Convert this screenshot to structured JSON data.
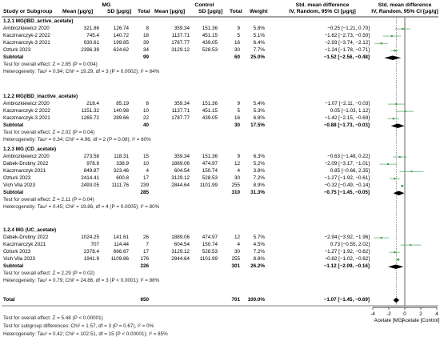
{
  "header": {
    "study_col": "Study or Subgroup",
    "group1": "MG",
    "group2": "Control",
    "mean1": "Mean [μg/g]",
    "sd1": "SD [μg/g]",
    "total1": "Total",
    "mean2": "Mean [μg/g]",
    "sd2": "SD [μg/g]",
    "total2": "Total",
    "weight": "Weight",
    "smd_title": "Std. mean difference",
    "smd_method": "IV, Random, 95% CI [μg/g]",
    "plot_title": "Std. mean difference",
    "plot_method": "IV, Random, 95% CI [μg/g]"
  },
  "subgroups": [
    {
      "title": "1.2.1 MG(IBD_active_acetate)",
      "studies": [
        {
          "name": "Ambrozkiewicz 2020",
          "m1": "321.86",
          "sd1": "126.74",
          "n1": "8",
          "m2": "359.34",
          "sd2": "151.36",
          "n2": "9",
          "w": "5.8%",
          "ci": "−0.25 [−1.21, 0.70]",
          "est": -0.25,
          "lo": -1.21,
          "hi": 0.7
        },
        {
          "name": "Kaczmarczyk-2 2022",
          "m1": "745.4",
          "sd1": "140.72",
          "n1": "18",
          "m2": "1137.71",
          "sd2": "451.15",
          "n2": "5",
          "w": "5.1%",
          "ci": "−1.62 [−2.73, −0.50]",
          "est": -1.62,
          "lo": -2.73,
          "hi": -0.5
        },
        {
          "name": "Kaczmarczyk-3 2021",
          "m1": "930.61",
          "sd1": "199.85",
          "n1": "39",
          "m2": "1787.77",
          "sd2": "439.05",
          "n2": "16",
          "w": "6.4%",
          "ci": "−2.93 [−3.74, −2.12]",
          "est": -2.93,
          "lo": -3.74,
          "hi": -2.12
        },
        {
          "name": "Ozturk 2023",
          "m1": "2396.39",
          "sd1": "624.62",
          "n1": "34",
          "m2": "3129.12",
          "sd2": "528.53",
          "n2": "30",
          "w": "7.7%",
          "ci": "−1.24 [−1.78, −0.71]",
          "est": -1.24,
          "lo": -1.78,
          "hi": -0.71
        }
      ],
      "subtotal": {
        "label": "Subtotal",
        "n1": "99",
        "n2": "60",
        "w": "25.0%",
        "ci": "−1.52 [−2.56, −0.48]",
        "est": -1.52,
        "lo": -2.56,
        "hi": -0.48
      },
      "effect": "Test for overall effect: Z = 2.85 (P = 0.004)",
      "het": "Heterogeneity: Tau² = 0.94; Chi² = 19.29, df = 3 (P = 0.0002); I² = 84%"
    },
    {
      "title": "1.2.2 MG(IBD_inactive_acetate)",
      "studies": [
        {
          "name": "Ambrozkiewicz 2020",
          "m1": "218.4",
          "sd1": "85.19",
          "n1": "8",
          "m2": "359.34",
          "sd2": "151.36",
          "n2": "9",
          "w": "5.4%",
          "ci": "−1.07 [−2.11, −0.03]",
          "est": -1.07,
          "lo": -2.11,
          "hi": -0.03
        },
        {
          "name": "Kaczmarczyk-2 2022",
          "m1": "1151.32",
          "sd1": "140.98",
          "n1": "10",
          "m2": "1137.71",
          "sd2": "451.15",
          "n2": "5",
          "w": "5.3%",
          "ci": "0.05 [−1.03, 1.12]",
          "est": 0.05,
          "lo": -1.03,
          "hi": 1.12
        },
        {
          "name": "Kaczmarczyk-3 2021",
          "m1": "1265.72",
          "sd1": "289.66",
          "n1": "22",
          "m2": "1787.77",
          "sd2": "439.05",
          "n2": "16",
          "w": "6.8%",
          "ci": "−1.42 [−2.15, −0.69]",
          "est": -1.42,
          "lo": -2.15,
          "hi": -0.69
        }
      ],
      "subtotal": {
        "label": "Subtotal",
        "n1": "40",
        "n2": "30",
        "w": "17.5%",
        "ci": "−0.88 [−1.73, −0.03]",
        "est": -0.88,
        "lo": -1.73,
        "hi": -0.03
      },
      "effect": "Test for overall effect: Z = 2.02 (P = 0.04)",
      "het": "Heterogeneity: Tau² = 0.34; Chi² = 4.96, df = 2 (P = 0.08); I² = 60%"
    },
    {
      "title": "1.2.3 MG (CD_acetate)",
      "studies": [
        {
          "name": "Ambrozkiewicz 2020",
          "m1": "273.58",
          "sd1": "118.31",
          "n1": "15",
          "m2": "359.34",
          "sd2": "151.36",
          "n2": "9",
          "w": "6.3%",
          "ci": "−0.63 [−1.48, 0.22]",
          "est": -0.63,
          "lo": -1.48,
          "hi": 0.22
        },
        {
          "name": "Dabek-Drobny 2022",
          "m1": "978.8",
          "sd1": "338.9",
          "n1": "10",
          "m2": "1889.06",
          "sd2": "474.97",
          "n2": "12",
          "w": "5.2%",
          "ci": "−2.09 [−3.17, −1.01]",
          "est": -2.09,
          "lo": -3.17,
          "hi": -1.01
        },
        {
          "name": "Kaczmarczyk 2021",
          "m1": "849.87",
          "sd1": "323.46",
          "n1": "4",
          "m2": "604.54",
          "sd2": "150.74",
          "n2": "4",
          "w": "3.8%",
          "ci": "0.85 [−0.66, 2.35]",
          "est": 0.85,
          "lo": -0.66,
          "hi": 2.35
        },
        {
          "name": "Ozturk 2023",
          "m1": "2414.41",
          "sd1": "600.8",
          "n1": "17",
          "m2": "3129.12",
          "sd2": "528.53",
          "n2": "30",
          "w": "7.2%",
          "ci": "−1.27 [−1.92, −0.61]",
          "est": -1.27,
          "lo": -1.92,
          "hi": -0.61
        },
        {
          "name": "Vich Vila 2023",
          "m1": "2493.05",
          "sd1": "1111.76",
          "n1": "239",
          "m2": "2844.64",
          "sd2": "1101.99",
          "n2": "255",
          "w": "8.9%",
          "ci": "−0.32 [−0.49, −0.14]",
          "est": -0.32,
          "lo": -0.49,
          "hi": -0.14
        }
      ],
      "subtotal": {
        "label": "Subtotal",
        "n1": "285",
        "n2": "310",
        "w": "31.3%",
        "ci": "−0.75 [−1.45, −0.05]",
        "est": -0.75,
        "lo": -1.45,
        "hi": -0.05
      },
      "effect": "Test for overall effect: Z = 2.11 (P = 0.04)",
      "het": "Heterogeneity: Tau² = 0.45; Chi² = 19.86, df = 4 (P = 0.0005); I² = 80%"
    },
    {
      "title": "1.2.4 MG (UC_acetate)",
      "studies": [
        {
          "name": "Dabek-Drobny 2022",
          "m1": "1024.25",
          "sd1": "141.61",
          "n1": "26",
          "m2": "1889.06",
          "sd2": "474.97",
          "n2": "12",
          "w": "5.7%",
          "ci": "−2.94 [−3.92, −1.96]",
          "est": -2.94,
          "lo": -3.92,
          "hi": -1.96
        },
        {
          "name": "Kaczmarczyk 2021",
          "m1": "707",
          "sd1": "114.44",
          "n1": "7",
          "m2": "604.54",
          "sd2": "150.74",
          "n2": "4",
          "w": "4.5%",
          "ci": "0.73 [−0.55, 2.02]",
          "est": 0.73,
          "lo": -0.55,
          "hi": 2.02
        },
        {
          "name": "Ozturk 2023",
          "m1": "2378.4",
          "sd1": "666.67",
          "n1": "17",
          "m2": "3129.12",
          "sd2": "528.53",
          "n2": "30",
          "w": "7.2%",
          "ci": "−1.27 [−1.92, −0.62]",
          "est": -1.27,
          "lo": -1.92,
          "hi": -0.62
        },
        {
          "name": "Vich Vila 2023",
          "m1": "1941.9",
          "sd1": "1109.86",
          "n1": "176",
          "m2": "2844.64",
          "sd2": "1101.99",
          "n2": "255",
          "w": "8.8%",
          "ci": "−0.82 [−1.02, −0.62]",
          "est": -0.82,
          "lo": -1.02,
          "hi": -0.62
        }
      ],
      "subtotal": {
        "label": "Subtotal",
        "n1": "226",
        "n2": "301",
        "w": "26.2%",
        "ci": "−1.12 [−2.09, −0.16]",
        "est": -1.12,
        "lo": -2.09,
        "hi": -0.16
      },
      "effect": "Test for overall effect: Z = 2.29 (P = 0.02)",
      "het": "Heterogeneity: Tau² = 0.79; Chi² = 24.86, df = 3 (P < 0.0001); I² = 88%"
    }
  ],
  "total": {
    "label": "Total",
    "n1": "650",
    "n2": "701",
    "w": "100.0%",
    "ci": "−1.07 [−1.45, −0.69]",
    "est": -1.07,
    "lo": -1.45,
    "hi": -0.69
  },
  "footer": [
    "Test for overall effect: Z = 5.48 (P < 0.00001)",
    "Test for subgroup differences: Chi² = 1.57, df = 3 (P = 0.67), I² = 0%",
    "Heterogeneity: Tau² = 0.42; Chi² = 102.51, df = 15 (P < 0.00001); I² = 85%"
  ],
  "chart_data": {
    "type": "forest",
    "xlim": [
      -4,
      4
    ],
    "ticks": [
      "-4",
      "-2",
      "0",
      "2",
      "4"
    ],
    "left_label": "Acetate [MG]",
    "right_label": "Acetate [Control]",
    "study_color": "#3a9a4a",
    "summary_color": "#000000"
  }
}
